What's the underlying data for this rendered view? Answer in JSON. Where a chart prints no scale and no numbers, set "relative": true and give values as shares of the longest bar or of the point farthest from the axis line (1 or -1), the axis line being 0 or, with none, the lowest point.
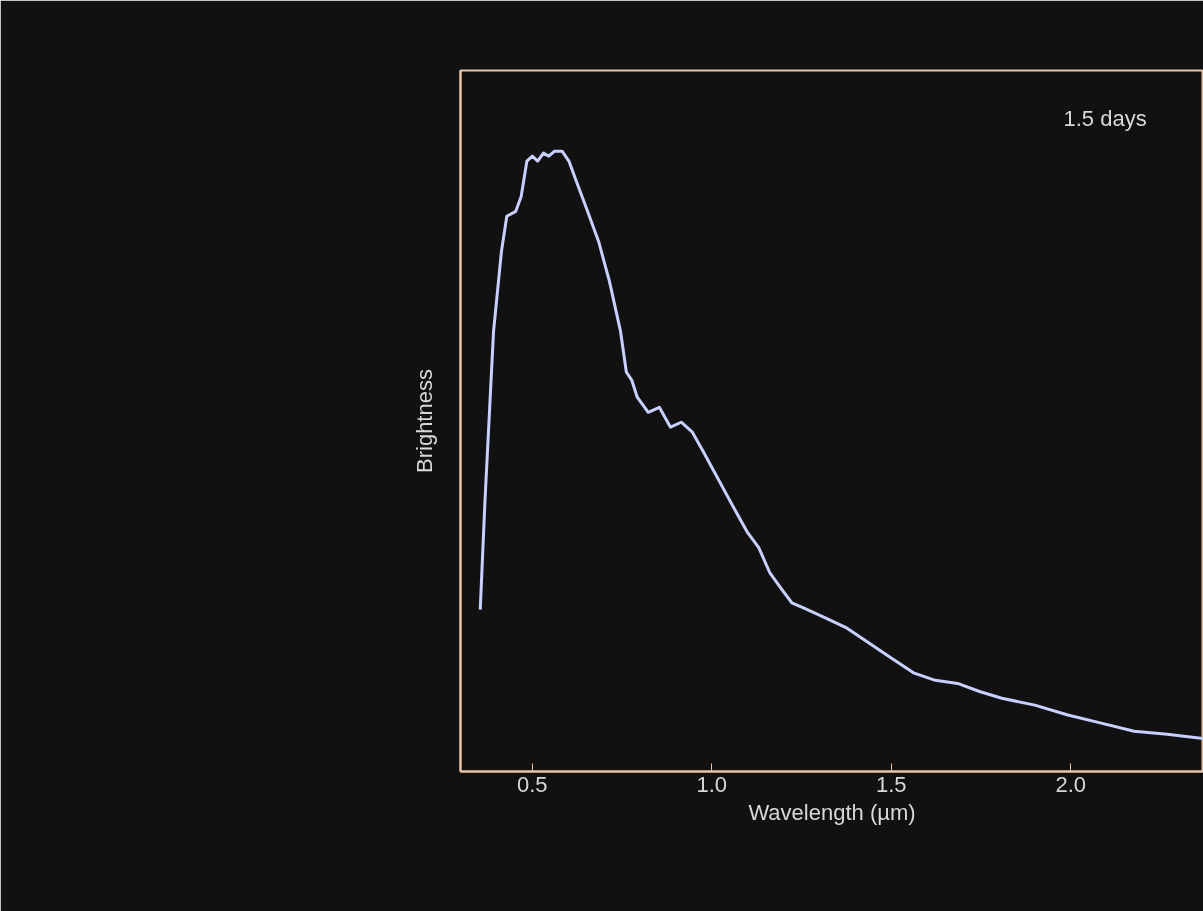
{
  "chart_data": {
    "type": "line",
    "relative": true,
    "xlabel": "Wavelength (µm)",
    "ylabel": "Brightness",
    "annotations": [
      "1.5 days"
    ],
    "x": [
      0.355,
      0.368,
      0.392,
      0.414,
      0.429,
      0.454,
      0.469,
      0.485,
      0.5,
      0.515,
      0.531,
      0.546,
      0.562,
      0.583,
      0.602,
      0.623,
      0.654,
      0.685,
      0.715,
      0.746,
      0.762,
      0.777,
      0.792,
      0.823,
      0.854,
      0.885,
      0.915,
      0.946,
      0.977,
      1.008,
      1.038,
      1.069,
      1.1,
      1.131,
      1.162,
      1.192,
      1.223,
      1.254,
      1.315,
      1.377,
      1.438,
      1.5,
      1.562,
      1.623,
      1.685,
      1.746,
      1.808,
      1.9,
      1.992,
      2.085,
      2.177,
      2.269,
      2.37
    ],
    "series": [
      {
        "color": "#c8d0ff",
        "values": [
          0.261,
          0.434,
          0.709,
          0.838,
          0.895,
          0.903,
          0.927,
          0.984,
          0.992,
          0.984,
          0.997,
          0.992,
          1.0,
          1.0,
          0.984,
          0.951,
          0.903,
          0.854,
          0.79,
          0.709,
          0.644,
          0.631,
          0.604,
          0.579,
          0.587,
          0.555,
          0.563,
          0.547,
          0.515,
          0.482,
          0.45,
          0.417,
          0.385,
          0.361,
          0.32,
          0.296,
          0.272,
          0.264,
          0.248,
          0.231,
          0.207,
          0.183,
          0.159,
          0.147,
          0.142,
          0.129,
          0.118,
          0.107,
          0.091,
          0.078,
          0.065,
          0.06,
          0.053
        ]
      }
    ],
    "xlim": [
      0.3,
      2.37
    ],
    "xticks": [
      0.5,
      {
        "value": 1,
        "label": "1.0"
      },
      1.5,
      {
        "value": 2,
        "label": "2.0"
      }
    ],
    "tick_labels": "x",
    "grid": false,
    "marker": "none",
    "line_style": "solid"
  }
}
